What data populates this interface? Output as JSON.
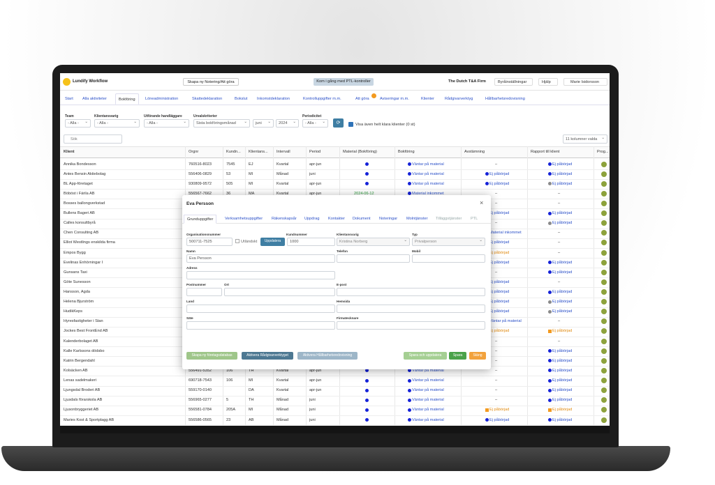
{
  "header": {
    "app_name": "Lundify Workflow",
    "create_note": "Skapa ny Notering/Att göra",
    "ptl": "Kom i gång med PTL-kontroller",
    "firm": "The Dutch T&A Firm",
    "settings": "Byråinställningar",
    "help": "Hjälp",
    "user": "Marie Isidorsson"
  },
  "tabs": [
    {
      "label": "Start"
    },
    {
      "label": "Alla aktiviteter"
    },
    {
      "label": "Bokföring",
      "active": true
    },
    {
      "label": "Löneadministration"
    },
    {
      "label": "Skattedeklaration"
    },
    {
      "label": "Bokslut"
    },
    {
      "label": "Inkomstdeklaration"
    },
    {
      "label": "Kontrolluppgifter m.m."
    },
    {
      "label": "Att göra"
    },
    {
      "label": "Aviseringar m.m."
    },
    {
      "label": "Klienter"
    },
    {
      "label": "Rådgivarverktyg"
    },
    {
      "label": "Hållbarhetsredovisning"
    }
  ],
  "filters": {
    "items": [
      {
        "label": "Team",
        "value": "- Alla -"
      },
      {
        "label": "Klientansvarig",
        "value": "- Alla -"
      },
      {
        "label": "Utförande handläggare",
        "value": "- Alla -"
      },
      {
        "label": "Urvalskriterier",
        "value": "Sista bokföringsmånad"
      },
      {
        "value": "juni"
      },
      {
        "value": "2024"
      },
      {
        "label": "Periodicitet",
        "value": "- Alla -"
      }
    ],
    "show_done": "Visa även helt klara klienter (0 st)",
    "search": "Sök",
    "columns_select": "11 kolumner valda"
  },
  "table": {
    "columns": [
      "Klient",
      "Orgnr",
      "Kundn...",
      "Klientans...",
      "Intervall",
      "Period",
      "Material (Bokföring)",
      "Bokföring",
      "Avstämning",
      "Rapport till klient",
      "Prog..."
    ],
    "rows": [
      {
        "client": "Annika Bondesson",
        "orgnr": "760516-8023",
        "kundnr": "7545",
        "ansv": "EJ",
        "interval": "Kvartal",
        "period": "apr-jun",
        "bokforing": "Väntar på material",
        "avst": "–",
        "rapport": "Ej påbörjad"
      },
      {
        "client": "Antes Bensin Aktiebolag",
        "orgnr": "556406-0829",
        "kundnr": "53",
        "ansv": "MI",
        "interval": "Månad",
        "period": "juni",
        "bokforing": "Väntar på material",
        "avst": "Ej påbörjad",
        "rapport": "Ej påbörjad"
      },
      {
        "client": "BL App-företaget",
        "orgnr": "930809-9572",
        "kundnr": "505",
        "ansv": "MI",
        "interval": "Kvartal",
        "period": "apr-jun",
        "bokforing": "Väntar på material",
        "avst": "Ej påbörjad",
        "rapport": "Ej påbörjad",
        "rapport_tone": "gray"
      },
      {
        "client": "Böböst i Färila AB",
        "orgnr": "556567-7662",
        "kundnr": "36",
        "ansv": "MA",
        "interval": "Kvartal",
        "period": "apr-jun",
        "material": "2024-06-12",
        "bokforing": "Material inkommet",
        "avst": "–",
        "rapport": "–"
      },
      {
        "client": "Bosses ballongverkstad",
        "avst": "–",
        "rapport": "–"
      },
      {
        "client": "Bullens Bageri AB",
        "avst": "Ej påbörjad",
        "rapport": "Ej påbörjad"
      },
      {
        "client": "Calles konsultbyrå",
        "avst": "–",
        "rapport": "Ej påbörjad",
        "rapport_tone": "gray"
      },
      {
        "client": "Chen Consulting AB",
        "avst": "Material inkommet",
        "rapport": "–"
      },
      {
        "client": "Elliot Westlings enskilda firma",
        "avst": "Ej påbörjad",
        "rapport": "–"
      },
      {
        "client": "Empos Bygg",
        "avst": "Ej påbörjad",
        "avst_tone": "orange",
        "rapport": "–"
      },
      {
        "client": "Evelinas Enhörningar I",
        "avst": "Ej påbörjad",
        "rapport": "Ej påbörjad"
      },
      {
        "client": "Gunsans Taxi",
        "avst": "–",
        "rapport": "Ej påbörjad"
      },
      {
        "client": "Göte Sunesson",
        "avst": "Ej påbörjad",
        "rapport": "–"
      },
      {
        "client": "Hansson, Agda",
        "avst": "Ej påbörjad",
        "rapport": "Ej påbörjad"
      },
      {
        "client": "Helena Bjurström",
        "avst": "Ej påbörjad",
        "rapport": "Ej påbörjad",
        "rapport_tone": "gray"
      },
      {
        "client": "HudikKeps",
        "avst": "Ej påbörjad",
        "rapport": "Ej påbörjad",
        "rapport_tone": "gray"
      },
      {
        "client": "Hyresfastigheter i Stan",
        "avst": "Väntar på material",
        "rapport": "–"
      },
      {
        "client": "Jockes Best FrontEnd AB",
        "avst": "Ej påbörjad",
        "avst_tone": "orange",
        "rapport": "Ej påbörjad",
        "rapport_tone": "orange"
      },
      {
        "client": "Kalenderbolaget AB",
        "avst": "–",
        "rapport": "–"
      },
      {
        "client": "Kalle Karlssons dödsbo",
        "avst": "–",
        "rapport": "Ej påbörjad"
      },
      {
        "client": "Katrin Bergendahl",
        "avst": "–",
        "rapport": "Ej påbörjad"
      },
      {
        "client": "Kolsäcken AB",
        "orgnr": "556491-5352",
        "kundnr": "106",
        "ansv": "TH",
        "interval": "Kvartal",
        "period": "apr-jun",
        "bokforing": "Väntar på material",
        "avst": "–",
        "rapport": "Ej påbörjad"
      },
      {
        "client": "Lenas sadelmakeri",
        "orgnr": "690718-7543",
        "kundnr": "106",
        "ansv": "MI",
        "interval": "Kvartal",
        "period": "apr-jun",
        "bokforing": "Väntar på material",
        "avst": "–",
        "rapport": "Ej påbörjad"
      },
      {
        "client": "Ljungsdal Broderi AB",
        "orgnr": "559170-0140",
        "ansv": "DA",
        "interval": "Kvartal",
        "period": "apr-jun",
        "bokforing": "Väntar på material",
        "avst": "–",
        "rapport": "Ej påbörjad"
      },
      {
        "client": "Ljusdals förarskola AB",
        "orgnr": "556965-0277",
        "kundnr": "5",
        "ansv": "TH",
        "interval": "Månad",
        "period": "juni",
        "bokforing": "Väntar på material",
        "avst": "–",
        "rapport": "Ej påbörjad"
      },
      {
        "client": "Ljusonbryggeriet AB",
        "orgnr": "556581-0784",
        "kundnr": "205A",
        "ansv": "MI",
        "interval": "Månad",
        "period": "juni",
        "bokforing": "Väntar på material",
        "avst": "Ej påbörjad",
        "avst_tone": "orange",
        "rapport": "Ej påbörjad",
        "rapport_tone": "orange"
      },
      {
        "client": "Maries Kost & Sportplagg AB",
        "orgnr": "556586-0565",
        "kundnr": "23",
        "ansv": "AB",
        "interval": "Månad",
        "period": "juni",
        "bokforing": "Väntar på material",
        "avst": "Ej påbörjad",
        "rapport": "Ej påbörjad"
      }
    ]
  },
  "modal": {
    "title": "Eva Persson",
    "tabs": [
      "Grunduppgifter",
      "Verksamhetsuppgifter",
      "Räkenskapsår",
      "Uppdrag",
      "Kontakter",
      "Dokument",
      "Noteringar",
      "Molntjänster",
      "Tilläggstjänster",
      "PTL"
    ],
    "fields": [
      {
        "label": "Organisationsnummer",
        "value": "500711-7525"
      },
      {
        "label": "Kundnummer",
        "value": "1000"
      },
      {
        "label": "Klientansvarig",
        "value": "Kristina Norberg"
      },
      {
        "label": "Typ",
        "value": "Privatperson"
      },
      {
        "label": "Namn",
        "value": "Eva Persson"
      },
      {
        "label": "Telefon"
      },
      {
        "label": "Mobil"
      },
      {
        "label": "Adress"
      },
      {
        "label": "Postnummer"
      },
      {
        "label": "Ort"
      },
      {
        "label": "E-post"
      },
      {
        "label": "Land"
      },
      {
        "label": "Hemsida"
      },
      {
        "label": "Säte"
      },
      {
        "label": "Firmatecknare"
      }
    ],
    "foreign": "Utländskt",
    "update": "Uppdatera",
    "buttons": [
      "Skapa ny företagsdatabas",
      "Aktivera Rådgivarverktyget",
      "Aktivera Hållbarhetsredovisning",
      "Spara och uppdatera",
      "Spara",
      "Stäng"
    ]
  }
}
